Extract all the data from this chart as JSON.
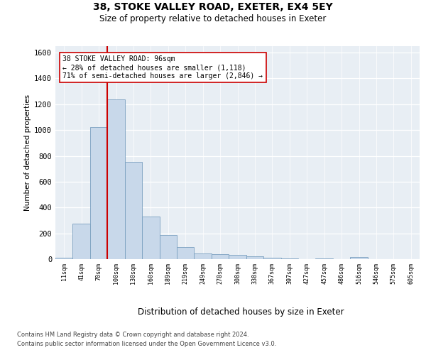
{
  "title1": "38, STOKE VALLEY ROAD, EXETER, EX4 5EY",
  "title2": "Size of property relative to detached houses in Exeter",
  "xlabel": "Distribution of detached houses by size in Exeter",
  "ylabel": "Number of detached properties",
  "bar_labels": [
    "11sqm",
    "41sqm",
    "70sqm",
    "100sqm",
    "130sqm",
    "160sqm",
    "189sqm",
    "219sqm",
    "249sqm",
    "278sqm",
    "308sqm",
    "338sqm",
    "367sqm",
    "397sqm",
    "427sqm",
    "457sqm",
    "486sqm",
    "516sqm",
    "546sqm",
    "575sqm",
    "605sqm"
  ],
  "bar_values": [
    10,
    275,
    1025,
    1240,
    755,
    330,
    185,
    95,
    45,
    38,
    32,
    22,
    13,
    4,
    0,
    7,
    0,
    14,
    0,
    0,
    0
  ],
  "bar_color": "#c8d8ea",
  "bar_edge_color": "#7aa0c0",
  "annotation_text": "38 STOKE VALLEY ROAD: 96sqm\n← 28% of detached houses are smaller (1,118)\n71% of semi-detached houses are larger (2,846) →",
  "annotation_box_edge": "#cc0000",
  "line_color": "#cc0000",
  "ylim": [
    0,
    1650
  ],
  "yticks": [
    0,
    200,
    400,
    600,
    800,
    1000,
    1200,
    1400,
    1600
  ],
  "footer_line1": "Contains HM Land Registry data © Crown copyright and database right 2024.",
  "footer_line2": "Contains public sector information licensed under the Open Government Licence v3.0.",
  "bg_color": "#e8eef4"
}
